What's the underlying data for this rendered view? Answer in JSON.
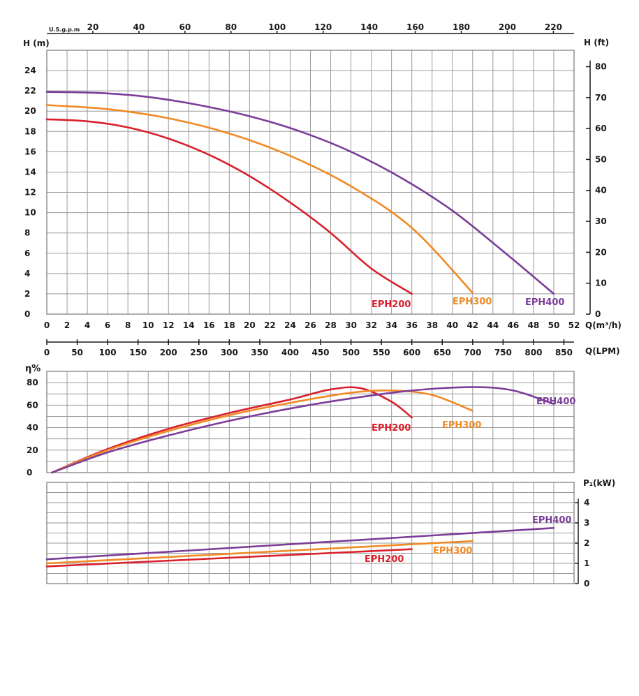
{
  "chart_data": [
    {
      "panel": "head",
      "type": "line",
      "y_label": "H (m)",
      "y_range": [
        0,
        26
      ],
      "y_ticks": [
        0,
        2,
        4,
        6,
        8,
        10,
        12,
        14,
        16,
        18,
        20,
        22,
        24
      ],
      "y2_label": "H (ft)",
      "y2_ticks": [
        0,
        10,
        20,
        30,
        40,
        50,
        60,
        70,
        80
      ],
      "x_label": "Q(m³/h)",
      "x_range": [
        0,
        52
      ],
      "x_ticks": [
        0,
        2,
        4,
        6,
        8,
        10,
        12,
        14,
        16,
        18,
        20,
        22,
        24,
        26,
        28,
        30,
        32,
        34,
        36,
        38,
        40,
        42,
        44,
        46,
        48,
        50,
        52
      ],
      "top_axis_label": "U.S.g.p.m",
      "top_axis_ticks": [
        20,
        40,
        60,
        80,
        100,
        120,
        140,
        160,
        180,
        200,
        220
      ],
      "bottom_axis_label": "Q(LPM)",
      "bottom_axis_ticks": [
        0,
        50,
        100,
        150,
        200,
        250,
        300,
        350,
        400,
        450,
        500,
        550,
        600,
        650,
        700,
        750,
        800,
        850
      ],
      "grid": true,
      "series": [
        {
          "name": "EPH200",
          "color": "#d9202c",
          "x": [
            0,
            4,
            8,
            12,
            16,
            20,
            24,
            28,
            32,
            36
          ],
          "y": [
            19.2,
            19.0,
            18.4,
            17.3,
            15.7,
            13.6,
            11.0,
            8.0,
            4.5,
            2.0
          ]
        },
        {
          "name": "EPH300",
          "color": "#f08a24",
          "x": [
            0,
            6,
            12,
            18,
            24,
            30,
            36,
            42
          ],
          "y": [
            20.6,
            20.2,
            19.3,
            17.8,
            15.6,
            12.6,
            8.5,
            2.1
          ]
        },
        {
          "name": "EPH400",
          "color": "#7b3d98",
          "x": [
            0,
            5,
            10,
            15,
            20,
            25,
            30,
            35,
            40,
            45,
            50
          ],
          "y": [
            21.9,
            21.8,
            21.4,
            20.6,
            19.5,
            18.0,
            16.0,
            13.4,
            10.2,
            6.2,
            2.0
          ]
        }
      ]
    },
    {
      "panel": "efficiency",
      "type": "line",
      "y_label": "η%",
      "y_range": [
        0,
        90
      ],
      "y_ticks": [
        0,
        20,
        40,
        60,
        80
      ],
      "x_range": [
        0,
        52
      ],
      "grid": true,
      "series": [
        {
          "name": "EPH200",
          "color": "#d9202c",
          "x": [
            0.5,
            6,
            12,
            18,
            24,
            28,
            31,
            34,
            36
          ],
          "y": [
            0,
            21,
            39,
            53,
            65,
            74,
            75,
            63,
            49
          ]
        },
        {
          "name": "EPH300",
          "color": "#f08a24",
          "x": [
            0.5,
            6,
            12,
            18,
            24,
            30,
            34,
            38,
            42
          ],
          "y": [
            0,
            20,
            37,
            51,
            62,
            71,
            73,
            69,
            55
          ]
        },
        {
          "name": "EPH400",
          "color": "#7b3d98",
          "x": [
            0.5,
            6,
            12,
            18,
            24,
            30,
            36,
            42,
            46,
            50
          ],
          "y": [
            0,
            18,
            33,
            46,
            57,
            66,
            73,
            76,
            73,
            61
          ]
        }
      ]
    },
    {
      "panel": "power",
      "type": "line",
      "y_label": "P₁(kW)",
      "y_range": [
        0,
        5
      ],
      "y_ticks": [
        0,
        1,
        2,
        3,
        4
      ],
      "x_range": [
        0,
        52
      ],
      "grid": true,
      "series": [
        {
          "name": "EPH200",
          "color": "#d9202c",
          "x": [
            0,
            36
          ],
          "y": [
            0.85,
            1.7
          ]
        },
        {
          "name": "EPH300",
          "color": "#f08a24",
          "x": [
            0,
            42
          ],
          "y": [
            1.0,
            2.1
          ]
        },
        {
          "name": "EPH400",
          "color": "#7b3d98",
          "x": [
            0,
            50
          ],
          "y": [
            1.2,
            2.75
          ]
        }
      ]
    }
  ]
}
